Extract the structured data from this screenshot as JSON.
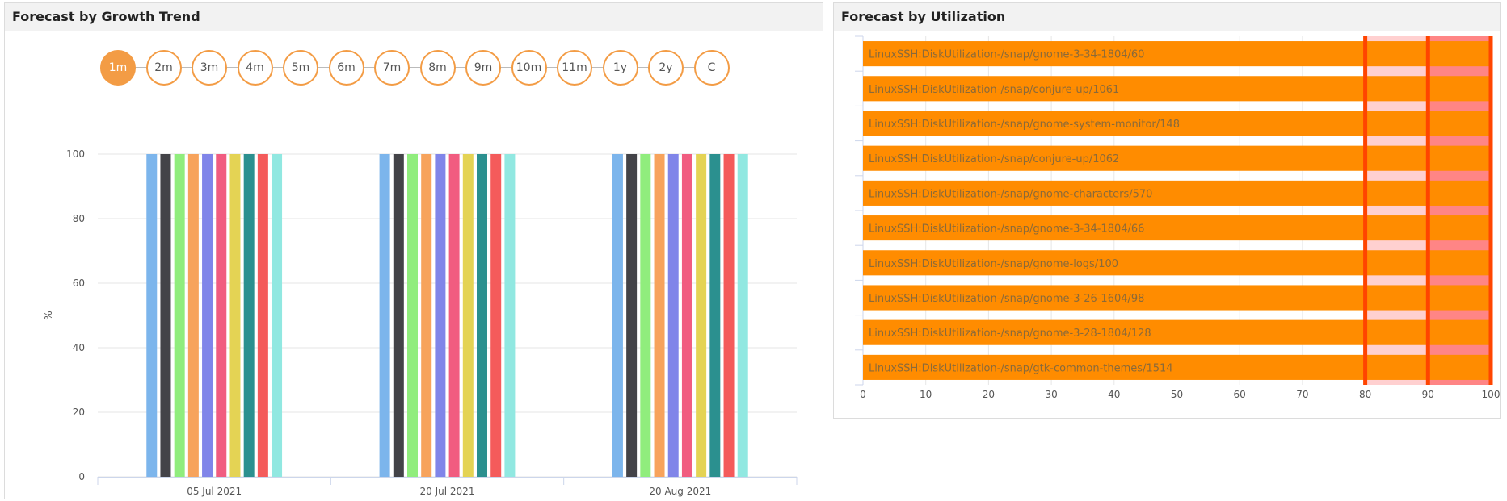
{
  "growth_panel": {
    "title": "Forecast by Growth Trend",
    "ranges": [
      "1m",
      "2m",
      "3m",
      "4m",
      "5m",
      "6m",
      "7m",
      "8m",
      "9m",
      "10m",
      "11m",
      "1y",
      "2y",
      "C"
    ],
    "active_range": "1m"
  },
  "util_panel": {
    "title": "Forecast by Utilization"
  },
  "chart_data": [
    {
      "type": "bar",
      "title": "",
      "xlabel": "",
      "ylabel": "%",
      "ylim": [
        0,
        100
      ],
      "yticks": [
        0,
        20,
        40,
        60,
        80,
        100
      ],
      "grid": true,
      "categories": [
        "05 Jul 2021",
        "20 Jul 2021",
        "20 Aug 2021"
      ],
      "series": [
        {
          "color": "#7cb5ec",
          "values": [
            100,
            100,
            100
          ]
        },
        {
          "color": "#434348",
          "values": [
            100,
            100,
            100
          ]
        },
        {
          "color": "#90ed7d",
          "values": [
            100,
            100,
            100
          ]
        },
        {
          "color": "#f7a35c",
          "values": [
            100,
            100,
            100
          ]
        },
        {
          "color": "#8085e9",
          "values": [
            100,
            100,
            100
          ]
        },
        {
          "color": "#f15c80",
          "values": [
            100,
            100,
            100
          ]
        },
        {
          "color": "#e4d354",
          "values": [
            100,
            100,
            100
          ]
        },
        {
          "color": "#2b908f",
          "values": [
            100,
            100,
            100
          ]
        },
        {
          "color": "#f45b5b",
          "values": [
            100,
            100,
            100
          ]
        },
        {
          "color": "#91e8e1",
          "values": [
            100,
            100,
            100
          ]
        }
      ]
    },
    {
      "type": "bar",
      "orientation": "horizontal",
      "title": "",
      "xlim": [
        0,
        100
      ],
      "xticks": [
        0,
        10,
        20,
        30,
        40,
        50,
        60,
        70,
        80,
        90,
        100
      ],
      "grid": true,
      "bar_color": "#ff8c00",
      "threshold_bands": [
        {
          "from": 80,
          "to": 90,
          "color": "#ffd0d0"
        },
        {
          "from": 90,
          "to": 100,
          "color": "#ff8585"
        }
      ],
      "threshold_lines": [
        80,
        90,
        100
      ],
      "threshold_line_color": "#ff4500",
      "categories": [
        "LinuxSSH:DiskUtilization-/snap/gnome-3-34-1804/60",
        "LinuxSSH:DiskUtilization-/snap/conjure-up/1061",
        "LinuxSSH:DiskUtilization-/snap/gnome-system-monitor/148",
        "LinuxSSH:DiskUtilization-/snap/conjure-up/1062",
        "LinuxSSH:DiskUtilization-/snap/gnome-characters/570",
        "LinuxSSH:DiskUtilization-/snap/gnome-3-34-1804/66",
        "LinuxSSH:DiskUtilization-/snap/gnome-logs/100",
        "LinuxSSH:DiskUtilization-/snap/gnome-3-26-1604/98",
        "LinuxSSH:DiskUtilization-/snap/gnome-3-28-1804/128",
        "LinuxSSH:DiskUtilization-/snap/gtk-common-themes/1514"
      ],
      "values": [
        100,
        100,
        100,
        100,
        100,
        100,
        100,
        100,
        100,
        100
      ]
    }
  ]
}
